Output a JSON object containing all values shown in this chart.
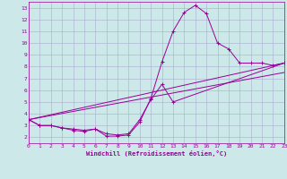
{
  "xlabel": "Windchill (Refroidissement éolien,°C)",
  "bg_color": "#cce8e8",
  "line_color": "#990099",
  "grid_color": "#aaaacc",
  "xlim": [
    0,
    23
  ],
  "ylim": [
    1.5,
    13.5
  ],
  "xticks": [
    0,
    1,
    2,
    3,
    4,
    5,
    6,
    7,
    8,
    9,
    10,
    11,
    12,
    13,
    14,
    15,
    16,
    17,
    18,
    19,
    20,
    21,
    22,
    23
  ],
  "yticks": [
    2,
    3,
    4,
    5,
    6,
    7,
    8,
    9,
    10,
    11,
    12,
    13
  ],
  "line1_x": [
    0,
    1,
    2,
    3,
    4,
    5,
    6,
    7,
    8,
    9,
    10,
    11,
    12,
    13,
    14,
    15,
    16,
    17,
    18,
    19,
    20,
    21,
    22,
    23
  ],
  "line1_y": [
    3.5,
    3.0,
    3.0,
    2.8,
    2.6,
    2.5,
    2.7,
    2.1,
    2.1,
    2.2,
    3.3,
    5.3,
    8.4,
    11.0,
    12.6,
    13.2,
    12.5,
    10.0,
    9.5,
    8.3,
    8.3,
    8.3,
    8.1,
    8.3
  ],
  "line2_x": [
    0,
    1,
    2,
    3,
    4,
    5,
    6,
    7,
    8,
    9,
    10,
    11,
    12,
    13,
    23
  ],
  "line2_y": [
    3.5,
    3.0,
    3.0,
    2.8,
    2.7,
    2.6,
    2.7,
    2.3,
    2.2,
    2.3,
    3.5,
    5.2,
    6.5,
    5.0,
    8.3
  ],
  "line3_x": [
    0,
    23
  ],
  "line3_y": [
    3.5,
    8.3
  ],
  "line4_x": [
    0,
    23
  ],
  "line4_y": [
    3.5,
    7.5
  ]
}
